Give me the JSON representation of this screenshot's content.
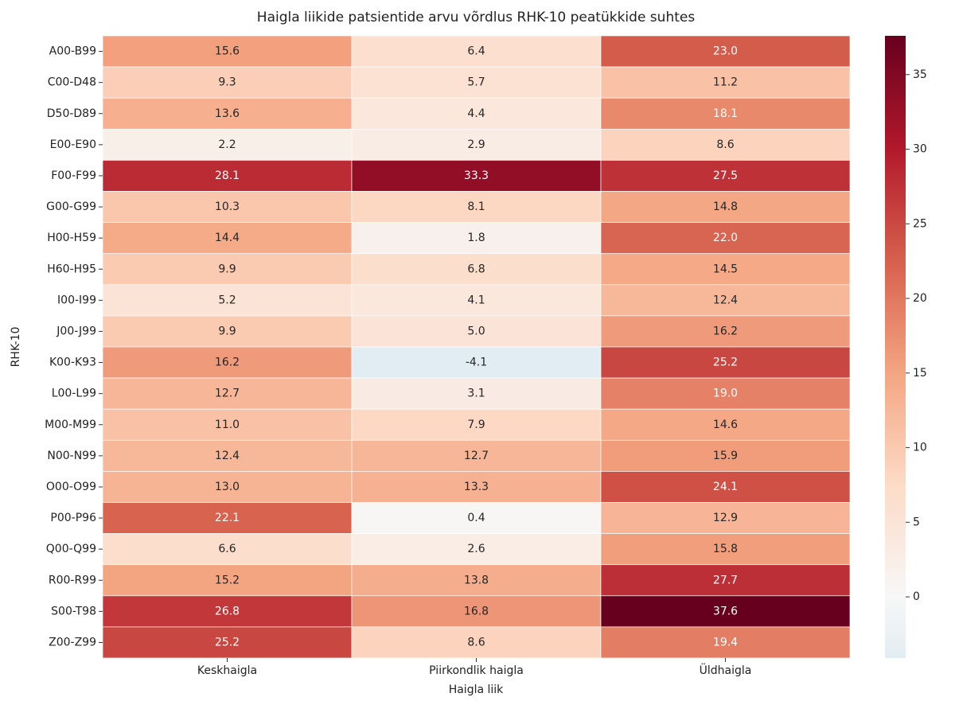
{
  "chart_data": {
    "type": "heatmap",
    "title": "Haigla liikide patsientide arvu võrdlus RHK-10 peatükkide suhtes",
    "x_label": "Haigla liik",
    "y_label": "RHK-10",
    "x_categories": [
      "Keskhaigla",
      "Piirkondlik haigla",
      "Üldhaigla"
    ],
    "y_categories": [
      "A00-B99",
      "C00-D48",
      "D50-D89",
      "E00-E90",
      "F00-F99",
      "G00-G99",
      "H00-H59",
      "H60-H95",
      "I00-I99",
      "J00-J99",
      "K00-K93",
      "L00-L99",
      "M00-M99",
      "N00-N99",
      "O00-O99",
      "P00-P96",
      "Q00-Q99",
      "R00-R99",
      "S00-T98",
      "Z00-Z99"
    ],
    "values": [
      [
        15.6,
        6.4,
        23.0
      ],
      [
        9.3,
        5.7,
        11.2
      ],
      [
        13.6,
        4.4,
        18.1
      ],
      [
        2.2,
        2.9,
        8.6
      ],
      [
        28.1,
        33.3,
        27.5
      ],
      [
        10.3,
        8.1,
        14.8
      ],
      [
        14.4,
        1.8,
        22.0
      ],
      [
        9.9,
        6.8,
        14.5
      ],
      [
        5.2,
        4.1,
        12.4
      ],
      [
        9.9,
        5.0,
        16.2
      ],
      [
        16.2,
        -4.1,
        25.2
      ],
      [
        12.7,
        3.1,
        19.0
      ],
      [
        11.0,
        7.9,
        14.6
      ],
      [
        12.4,
        12.7,
        15.9
      ],
      [
        13.0,
        13.3,
        24.1
      ],
      [
        22.1,
        0.4,
        12.9
      ],
      [
        6.6,
        2.6,
        15.8
      ],
      [
        15.2,
        13.8,
        27.7
      ],
      [
        26.8,
        16.8,
        37.6
      ],
      [
        25.2,
        8.6,
        19.4
      ]
    ],
    "value_labels": [
      [
        "15.6",
        "6.4",
        "23.0"
      ],
      [
        "9.3",
        "5.7",
        "11.2"
      ],
      [
        "13.6",
        "4.4",
        "18.1"
      ],
      [
        "2.2",
        "2.9",
        "8.6"
      ],
      [
        "28.1",
        "33.3",
        "27.5"
      ],
      [
        "10.3",
        "8.1",
        "14.8"
      ],
      [
        "14.4",
        "1.8",
        "22.0"
      ],
      [
        "9.9",
        "6.8",
        "14.5"
      ],
      [
        "5.2",
        "4.1",
        "12.4"
      ],
      [
        "9.9",
        "5.0",
        "16.2"
      ],
      [
        "16.2",
        "-4.1",
        "25.2"
      ],
      [
        "12.7",
        "3.1",
        "19.0"
      ],
      [
        "11.0",
        "7.9",
        "14.6"
      ],
      [
        "12.4",
        "12.7",
        "15.9"
      ],
      [
        "13.0",
        "13.3",
        "24.1"
      ],
      [
        "22.1",
        "0.4",
        "12.9"
      ],
      [
        "6.6",
        "2.6",
        "15.8"
      ],
      [
        "15.2",
        "13.8",
        "27.7"
      ],
      [
        "26.8",
        "16.8",
        "37.6"
      ],
      [
        "25.2",
        "8.6",
        "19.4"
      ]
    ],
    "colormap": "RdBu_r",
    "center": 0,
    "clim": [
      -4.1,
      37.6
    ],
    "cticks": [
      0,
      5,
      10,
      15,
      20,
      25,
      30,
      35
    ]
  }
}
